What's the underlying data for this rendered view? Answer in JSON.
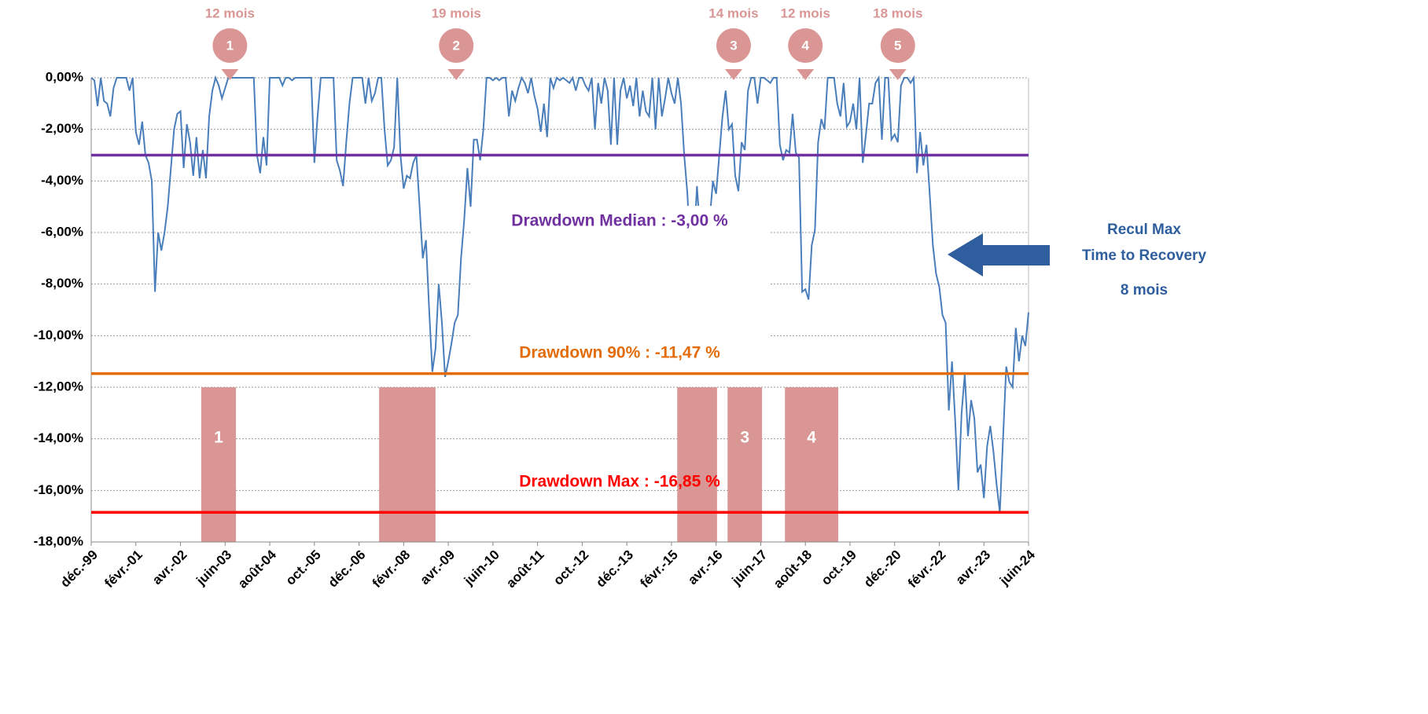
{
  "chart_data": {
    "type": "line",
    "categories": [
      "déc.-99",
      null,
      null,
      null,
      null,
      null,
      null,
      null,
      null,
      null,
      null,
      null,
      null,
      null,
      "févr.-01",
      null,
      null,
      null,
      null,
      null,
      null,
      null,
      null,
      null,
      null,
      null,
      null,
      null,
      "avr.-02",
      null,
      null,
      null,
      null,
      null,
      null,
      null,
      null,
      null,
      null,
      null,
      null,
      null,
      "juin-03",
      null,
      null,
      null,
      null,
      null,
      null,
      null,
      null,
      null,
      null,
      null,
      null,
      null,
      "août-04",
      null,
      null,
      null,
      null,
      null,
      null,
      null,
      null,
      null,
      null,
      null,
      null,
      null,
      "oct.-05",
      null,
      null,
      null,
      null,
      null,
      null,
      null,
      null,
      null,
      null,
      null,
      null,
      null,
      "déc.-06",
      null,
      null,
      null,
      null,
      null,
      null,
      null,
      null,
      null,
      null,
      null,
      null,
      null,
      "févr.-08",
      null,
      null,
      null,
      null,
      null,
      null,
      null,
      null,
      null,
      null,
      null,
      null,
      null,
      "avr.-09",
      null,
      null,
      null,
      null,
      null,
      null,
      null,
      null,
      null,
      null,
      null,
      null,
      null,
      "juin-10",
      null,
      null,
      null,
      null,
      null,
      null,
      null,
      null,
      null,
      null,
      null,
      null,
      null,
      "août-11",
      null,
      null,
      null,
      null,
      null,
      null,
      null,
      null,
      null,
      null,
      null,
      null,
      null,
      "oct.-12",
      null,
      null,
      null,
      null,
      null,
      null,
      null,
      null,
      null,
      null,
      null,
      null,
      null,
      "déc.-13",
      null,
      null,
      null,
      null,
      null,
      null,
      null,
      null,
      null,
      null,
      null,
      null,
      null,
      "févr.-15",
      null,
      null,
      null,
      null,
      null,
      null,
      null,
      null,
      null,
      null,
      null,
      null,
      null,
      "avr.-16",
      null,
      null,
      null,
      null,
      null,
      null,
      null,
      null,
      null,
      null,
      null,
      null,
      null,
      "juin-17",
      null,
      null,
      null,
      null,
      null,
      null,
      null,
      null,
      null,
      null,
      null,
      null,
      null,
      "août-18",
      null,
      null,
      null,
      null,
      null,
      null,
      null,
      null,
      null,
      null,
      null,
      null,
      null,
      "oct.-19",
      null,
      null,
      null,
      null,
      null,
      null,
      null,
      null,
      null,
      null,
      null,
      null,
      null,
      "déc.-20",
      null,
      null,
      null,
      null,
      null,
      null,
      null,
      null,
      null,
      null,
      null,
      null,
      null,
      "févr.-22",
      null,
      null,
      null,
      null,
      null,
      null,
      null,
      null,
      null,
      null,
      null,
      null,
      null,
      "avr.-23",
      null,
      null,
      null,
      null,
      null,
      null,
      null,
      null,
      null,
      null,
      null,
      null,
      null,
      "juin-24"
    ],
    "values": [
      0,
      -0.1,
      -1.1,
      0,
      -0.9,
      -1.0,
      -1.5,
      -0.4,
      0,
      0,
      0,
      0,
      -0.5,
      0,
      -2.1,
      -2.6,
      -1.7,
      -3.0,
      -3.3,
      -4.0,
      -8.3,
      -6.0,
      -6.7,
      -6.0,
      -5.0,
      -3.5,
      -2.0,
      -1.4,
      -1.3,
      -3.5,
      -1.8,
      -2.5,
      -3.8,
      -2.3,
      -3.9,
      -2.8,
      -3.9,
      -1.5,
      -0.5,
      0,
      -0.3,
      -0.8,
      -0.4,
      0,
      0,
      0,
      0,
      0,
      0,
      0,
      0,
      0,
      -3.0,
      -3.7,
      -2.3,
      -3.4,
      0,
      0,
      0,
      0,
      -0.3,
      0,
      0,
      -0.1,
      0,
      0,
      0,
      0,
      0,
      0,
      -3.3,
      -1.5,
      0,
      0,
      0,
      0,
      0,
      -3.2,
      -3.6,
      -4.2,
      -2.5,
      -1.0,
      0,
      0,
      0,
      0,
      -1.0,
      0,
      -0.9,
      -0.6,
      0,
      0,
      -2.0,
      -3.4,
      -3.2,
      -2.7,
      0,
      -3.0,
      -4.3,
      -3.8,
      -3.9,
      -3.3,
      -3.0,
      -5.0,
      -7.0,
      -6.3,
      -9.0,
      -11.4,
      -10.5,
      -8.0,
      -9.5,
      -11.6,
      -11.0,
      -10.3,
      -9.5,
      -9.2,
      -7.0,
      -5.5,
      -3.5,
      -5.0,
      -2.4,
      -2.4,
      -3.2,
      -2.0,
      0,
      0,
      -0.1,
      0,
      -0.1,
      0,
      0,
      -1.5,
      -0.5,
      -0.9,
      -0.4,
      0,
      -0.2,
      -0.6,
      0,
      -0.7,
      -1.2,
      -2.1,
      -1.0,
      -2.3,
      0,
      -0.4,
      0,
      -0.1,
      0,
      -0.1,
      -0.2,
      0,
      -0.5,
      0,
      0,
      -0.3,
      -0.5,
      0,
      -2.0,
      -0.2,
      -1.0,
      0,
      -0.5,
      -2.6,
      0,
      -2.6,
      -0.5,
      0,
      -0.8,
      -0.3,
      -1.1,
      0,
      -1.5,
      -0.5,
      -1.3,
      -1.5,
      0,
      -2.0,
      0,
      -1.5,
      -0.8,
      0,
      -0.6,
      -1.0,
      0,
      -1.0,
      -3.0,
      -4.5,
      -7.0,
      -6.5,
      -4.2,
      -6.0,
      -5.0,
      -6.4,
      -5.5,
      -4.0,
      -4.5,
      -3.0,
      -1.5,
      -0.5,
      -2.0,
      -1.8,
      -3.8,
      -4.4,
      -2.5,
      -2.8,
      -0.5,
      0,
      0,
      -1.0,
      0,
      0,
      -0.1,
      -0.2,
      0,
      0,
      -2.6,
      -3.2,
      -2.8,
      -2.9,
      -1.4,
      -2.9,
      -3.1,
      -8.3,
      -8.2,
      -8.6,
      -6.5,
      -5.9,
      -2.5,
      -1.6,
      -2.0,
      0,
      0,
      0,
      -1.0,
      -1.5,
      -0.2,
      -1.9,
      -1.7,
      -1.0,
      -2.0,
      0,
      -3.3,
      -2.2,
      -1.0,
      -1.0,
      -0.2,
      0,
      -2.4,
      0,
      0,
      -2.4,
      -2.2,
      -2.5,
      -0.3,
      0,
      0,
      -0.2,
      0,
      -3.7,
      -2.1,
      -3.4,
      -2.6,
      -4.5,
      -6.5,
      -7.6,
      -8.1,
      -9.2,
      -9.5,
      -12.9,
      -11.0,
      -13.3,
      -16.0,
      -13.0,
      -11.5,
      -13.9,
      -12.5,
      -13.2,
      -15.3,
      -15.0,
      -16.3,
      -14.3,
      -13.5,
      -14.5,
      -15.8,
      -16.85,
      -14.0,
      -11.2,
      -11.8,
      -12.0,
      -9.7,
      -11.0,
      -10.0,
      -10.4,
      -9.1
    ],
    "color": "#4a7ebb",
    "ylim": [
      -18,
      0
    ],
    "yticks": [
      {
        "value": 0,
        "label": "0,00%"
      },
      {
        "value": -2,
        "label": "-2,00%"
      },
      {
        "value": -4,
        "label": "-4,00%"
      },
      {
        "value": -6,
        "label": "-6,00%"
      },
      {
        "value": -8,
        "label": "-8,00%"
      },
      {
        "value": -10,
        "label": "-10,00%"
      },
      {
        "value": -12,
        "label": "-12,00%"
      },
      {
        "value": -14,
        "label": "-14,00%"
      },
      {
        "value": -16,
        "label": "-16,00%"
      },
      {
        "value": -18,
        "label": "-18,00%"
      }
    ],
    "grid": true,
    "reference_lines": [
      {
        "label": "Drawdown Median : -3,00 %",
        "value": -3,
        "color": "#7030a0"
      },
      {
        "label": "Drawdown 90% : -11,47 %",
        "value": -11.47,
        "color": "#e36c09"
      },
      {
        "label": "Drawdown Max : -16,85 %",
        "value": -16.85,
        "color": "#ff0000"
      }
    ],
    "periods_top": -12,
    "periods_color": "#d99694",
    "periods": [
      {
        "label": "1",
        "start": 34.5,
        "end": 45.4
      },
      {
        "start": 90.3,
        "end": 108
      },
      {
        "start": 183.8,
        "end": 196.3
      },
      {
        "label": "3",
        "start": 199.6,
        "end": 210.4
      },
      {
        "label": "4",
        "start": 217.6,
        "end": 234.3
      }
    ],
    "markers": [
      {
        "label": "1",
        "duration": "12 mois",
        "at": 43.5
      },
      {
        "label": "2",
        "duration": "19 mois",
        "at": 114.5
      },
      {
        "label": "3",
        "duration": "14 mois",
        "at": 201.5
      },
      {
        "label": "4",
        "duration": "12 mois",
        "at": 224
      },
      {
        "label": "5",
        "duration": "18 mois",
        "at": 253
      }
    ],
    "side_note": [
      "Recul Max",
      "Time to Recovery",
      "8 mois"
    ],
    "side_note_color": "#2e5e9e"
  }
}
